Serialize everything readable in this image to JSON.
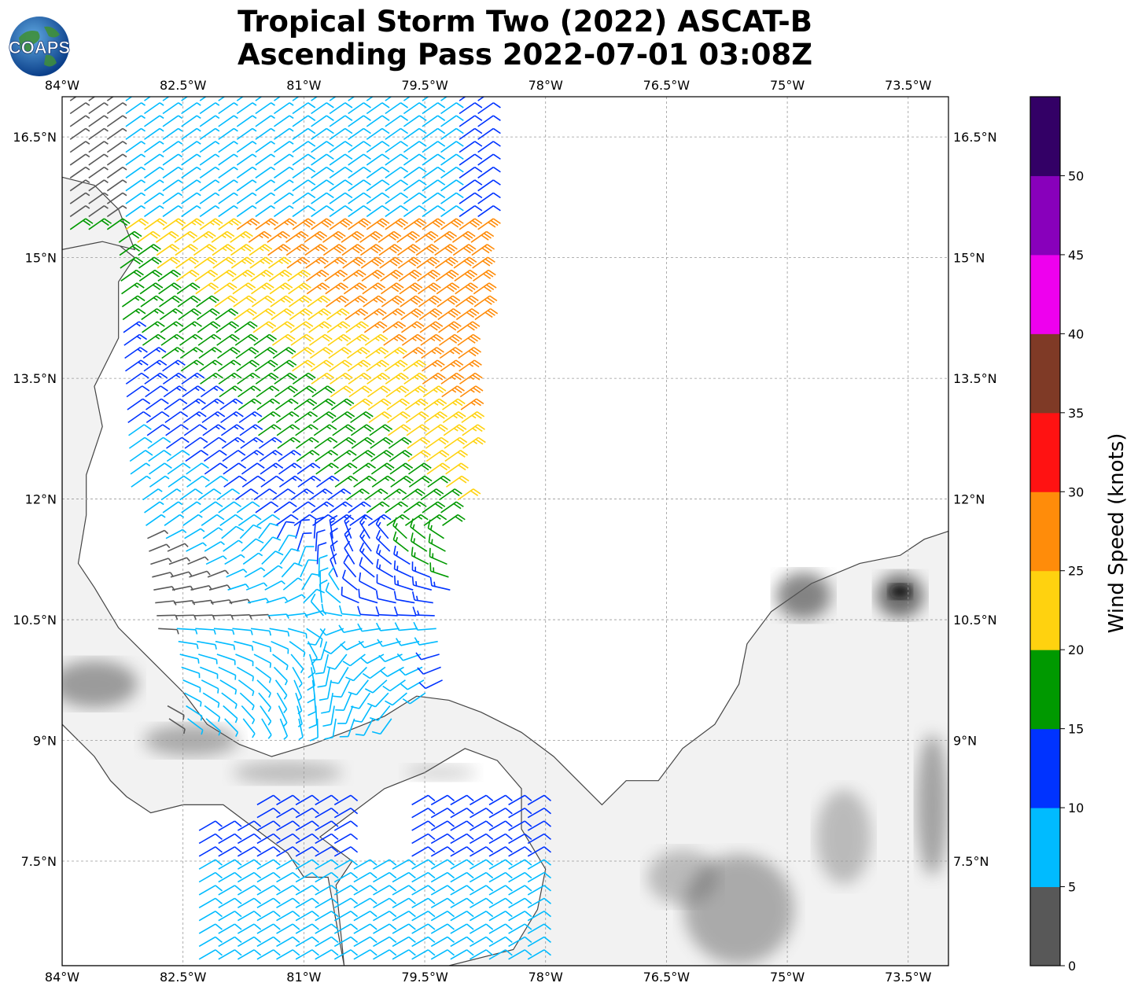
{
  "title": {
    "line1": "Tropical Storm Two (2022) ASCAT-B",
    "line2": "Ascending Pass 2022-07-01 03:08Z"
  },
  "logo": {
    "text": "COAPS"
  },
  "map": {
    "extent": {
      "lon_min": -84.0,
      "lon_max": -73.0,
      "lat_min": 6.2,
      "lat_max": 17.0
    },
    "lon_ticks": [
      {
        "value": -84.0,
        "label": "84°W"
      },
      {
        "value": -82.5,
        "label": "82.5°W"
      },
      {
        "value": -81.0,
        "label": "81°W"
      },
      {
        "value": -79.5,
        "label": "79.5°W"
      },
      {
        "value": -78.0,
        "label": "78°W"
      },
      {
        "value": -76.5,
        "label": "76.5°W"
      },
      {
        "value": -75.0,
        "label": "75°W"
      },
      {
        "value": -73.5,
        "label": "73.5°W"
      }
    ],
    "lat_ticks": [
      {
        "value": 16.5,
        "label": "16.5°N"
      },
      {
        "value": 15.0,
        "label": "15°N"
      },
      {
        "value": 13.5,
        "label": "13.5°N"
      },
      {
        "value": 12.0,
        "label": "12°N"
      },
      {
        "value": 10.5,
        "label": "10.5°N"
      },
      {
        "value": 9.0,
        "label": "9°N"
      },
      {
        "value": 7.5,
        "label": "7.5°N"
      }
    ],
    "gridlines": true
  },
  "colorbar": {
    "label": "Wind Speed (knots)",
    "min": 0,
    "max": 55,
    "tick_values": [
      0,
      5,
      10,
      15,
      20,
      25,
      30,
      35,
      40,
      45,
      50
    ],
    "tick_labels": [
      "0",
      "5",
      "10",
      "15",
      "20",
      "25",
      "30",
      "35",
      "40",
      "45",
      "50"
    ],
    "bins": [
      {
        "from": 0,
        "to": 5,
        "color": "#585858"
      },
      {
        "from": 5,
        "to": 10,
        "color": "#00bbff"
      },
      {
        "from": 10,
        "to": 15,
        "color": "#0033ff"
      },
      {
        "from": 15,
        "to": 20,
        "color": "#009900"
      },
      {
        "from": 20,
        "to": 25,
        "color": "#ffd20f"
      },
      {
        "from": 25,
        "to": 30,
        "color": "#ff8c0a"
      },
      {
        "from": 30,
        "to": 35,
        "color": "#ff1212"
      },
      {
        "from": 35,
        "to": 40,
        "color": "#7f3a26"
      },
      {
        "from": 40,
        "to": 45,
        "color": "#ee00ee"
      },
      {
        "from": 45,
        "to": 50,
        "color": "#8800bb"
      },
      {
        "from": 50,
        "to": 55,
        "color": "#330066"
      }
    ]
  }
}
